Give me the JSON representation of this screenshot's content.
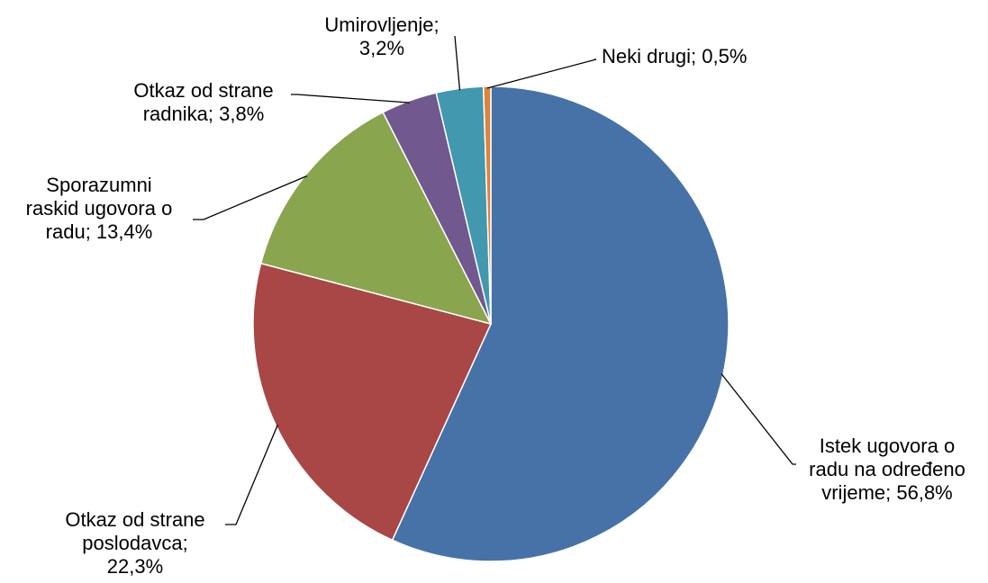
{
  "chart_data": {
    "type": "pie",
    "start_angle_deg": 0,
    "direction": "clockwise",
    "slices": [
      {
        "label_lines": [
          "Istek ugovora o",
          "radu na određeno",
          "vrijeme; 56,8%"
        ],
        "value": 56.8,
        "color": "#4672A8"
      },
      {
        "label_lines": [
          "Otkaz od strane",
          "poslodavca;",
          "22,3%"
        ],
        "value": 22.3,
        "color": "#A84745"
      },
      {
        "label_lines": [
          "Sporazumni",
          "raskid ugovora o",
          "radu; 13,4%"
        ],
        "value": 13.4,
        "color": "#89A54E"
      },
      {
        "label_lines": [
          "Otkaz od strane",
          "radnika; 3,8%"
        ],
        "value": 3.8,
        "color": "#71588F"
      },
      {
        "label_lines": [
          "Umirovljenje;",
          "3,2%"
        ],
        "value": 3.2,
        "color": "#4198AF"
      },
      {
        "label_lines": [
          "Neki drugi; 0,5%"
        ],
        "value": 0.5,
        "color": "#DB843D"
      }
    ]
  }
}
